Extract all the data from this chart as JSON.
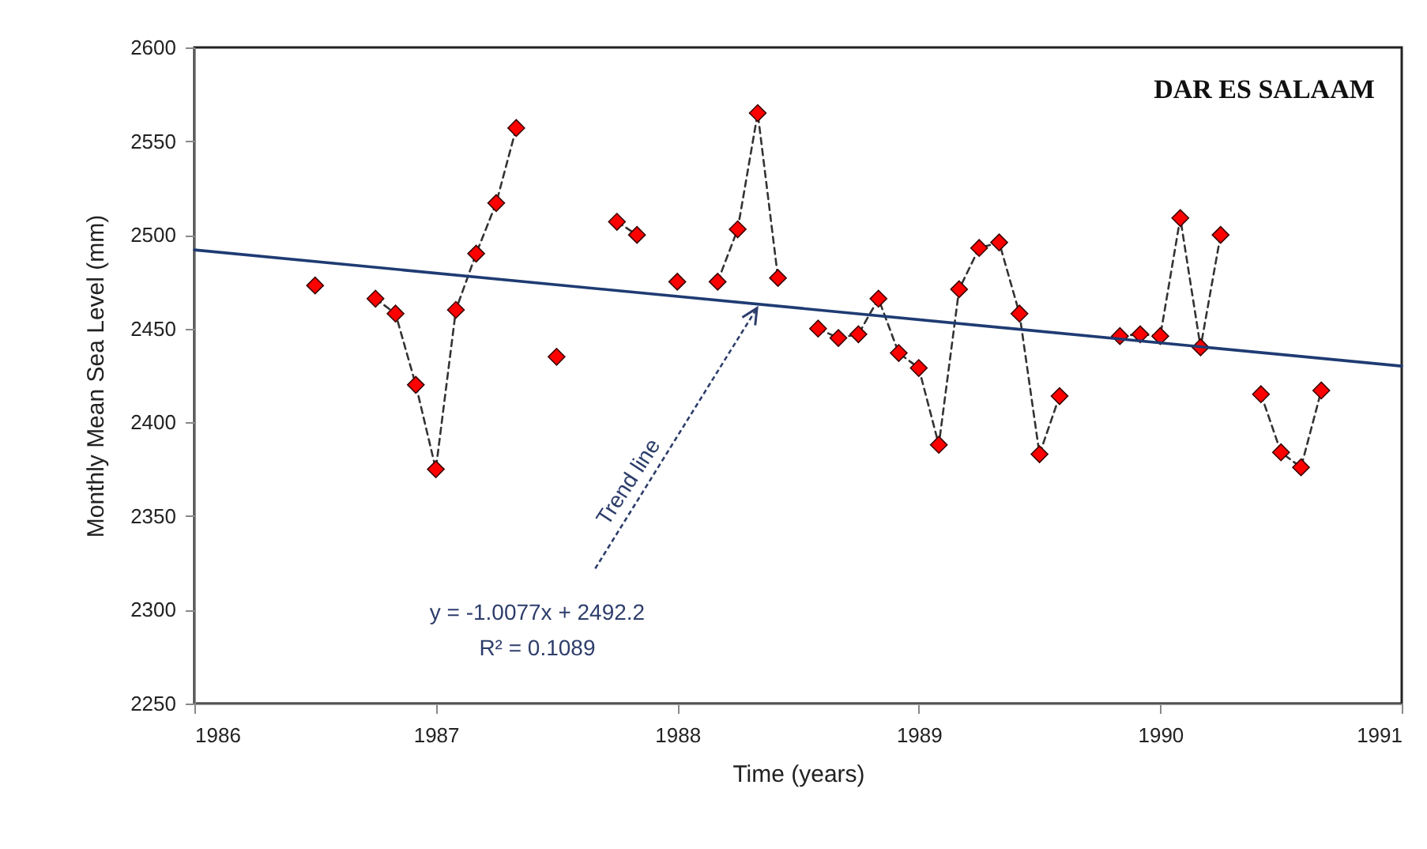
{
  "chart_data": {
    "type": "line",
    "title": "DAR ES SALAAM",
    "xlabel": "Time (years)",
    "ylabel": "Monthly Mean Sea Level (mm)",
    "annotations": [
      "Trend line",
      "y = -1.0077x + 2492.2",
      "R² = 0.1089"
    ],
    "xlim": [
      1986,
      1991
    ],
    "xticks": [
      1986,
      1987,
      1988,
      1989,
      1990,
      1991
    ],
    "ylim": [
      2250,
      2600
    ],
    "yticks": [
      2250,
      2300,
      2350,
      2400,
      2450,
      2500,
      2550,
      2600
    ],
    "grid": false,
    "series": [
      {
        "marker": "diamond",
        "line_style": "dashed",
        "color": "#ff0000",
        "x": [
          1986.5,
          1986.583,
          1986.667,
          1986.75,
          1986.833,
          1986.917,
          1987,
          1987.083,
          1987.167,
          1987.25,
          1987.333,
          1987.417,
          1987.5,
          1987.583,
          1987.667,
          1987.75,
          1987.833,
          1987.917,
          1988,
          1988.083,
          1988.167,
          1988.25,
          1988.333,
          1988.417,
          1988.5,
          1988.583,
          1988.667,
          1988.75,
          1988.833,
          1988.917,
          1989,
          1989.083,
          1989.167,
          1989.25,
          1989.333,
          1989.417,
          1989.5,
          1989.583,
          1989.667,
          1989.75,
          1989.833,
          1989.917,
          1990,
          1990.083,
          1990.167,
          1990.25,
          1990.333,
          1990.417,
          1990.5,
          1990.583,
          1990.667
        ],
        "values": [
          2473,
          null,
          null,
          2466,
          2458,
          2420,
          2375,
          2460,
          2490,
          2517,
          2557,
          null,
          2435,
          null,
          null,
          2507,
          2500,
          null,
          2475,
          null,
          2475,
          2503,
          2565,
          2477,
          null,
          2450,
          2445,
          2447,
          2466,
          2437,
          2429,
          2388,
          2471,
          2493,
          2496,
          2458,
          2383,
          2414,
          null,
          null,
          2446,
          2447,
          2446,
          2509,
          2440,
          2500,
          null,
          2415,
          2384,
          2376,
          2417
        ]
      },
      {
        "marker": "none",
        "line_style": "solid",
        "color": "#1f3b73",
        "x": [
          1986,
          1991
        ],
        "values": [
          2492,
          2430
        ]
      }
    ]
  }
}
